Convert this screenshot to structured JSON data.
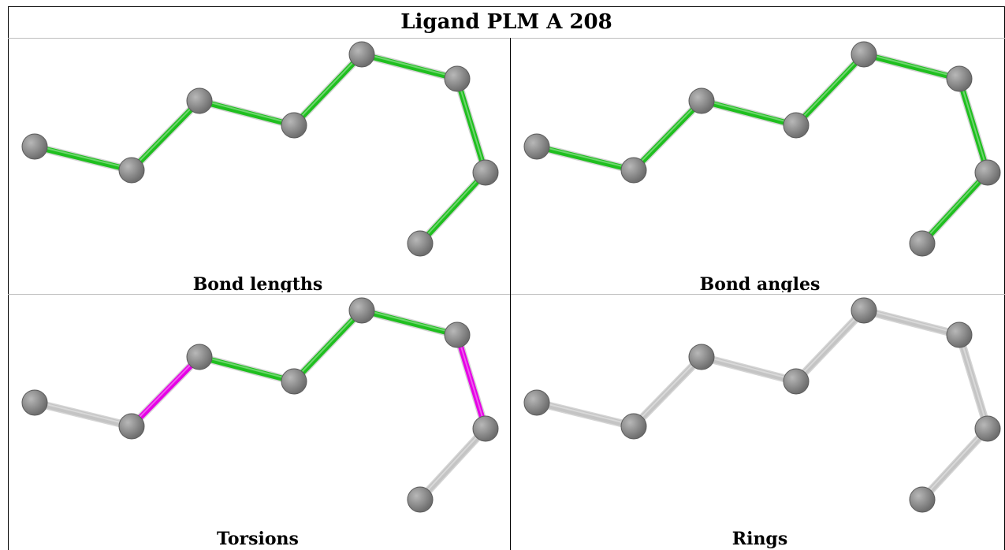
{
  "title": "Ligand PLM A 208",
  "colors": {
    "good_bond": "#1fbf1f",
    "flagged_bond": "#e600e6",
    "neutral_bond": "#c4c4c4",
    "atom": "#6e6e6e",
    "border": "#000000"
  },
  "atoms": [
    {
      "id": 1
    },
    {
      "id": 2
    },
    {
      "id": 3
    },
    {
      "id": 4
    },
    {
      "id": 5
    },
    {
      "id": 6
    },
    {
      "id": 7
    },
    {
      "id": 8
    }
  ],
  "panels": [
    {
      "caption": "Bond lengths",
      "bond_status": [
        "good",
        "good",
        "good",
        "good",
        "good",
        "good",
        "good",
        "good"
      ]
    },
    {
      "caption": "Bond angles",
      "bond_status": [
        "good",
        "good",
        "good",
        "good",
        "good",
        "good",
        "good",
        "good"
      ]
    },
    {
      "caption": "Torsions",
      "bond_status": [
        "neutral",
        "flagged",
        "good",
        "good",
        "good",
        "flagged",
        "neutral",
        "neutral"
      ]
    },
    {
      "caption": "Rings",
      "bond_status": [
        "neutral",
        "neutral",
        "neutral",
        "neutral",
        "neutral",
        "neutral",
        "neutral",
        "neutral"
      ]
    }
  ]
}
